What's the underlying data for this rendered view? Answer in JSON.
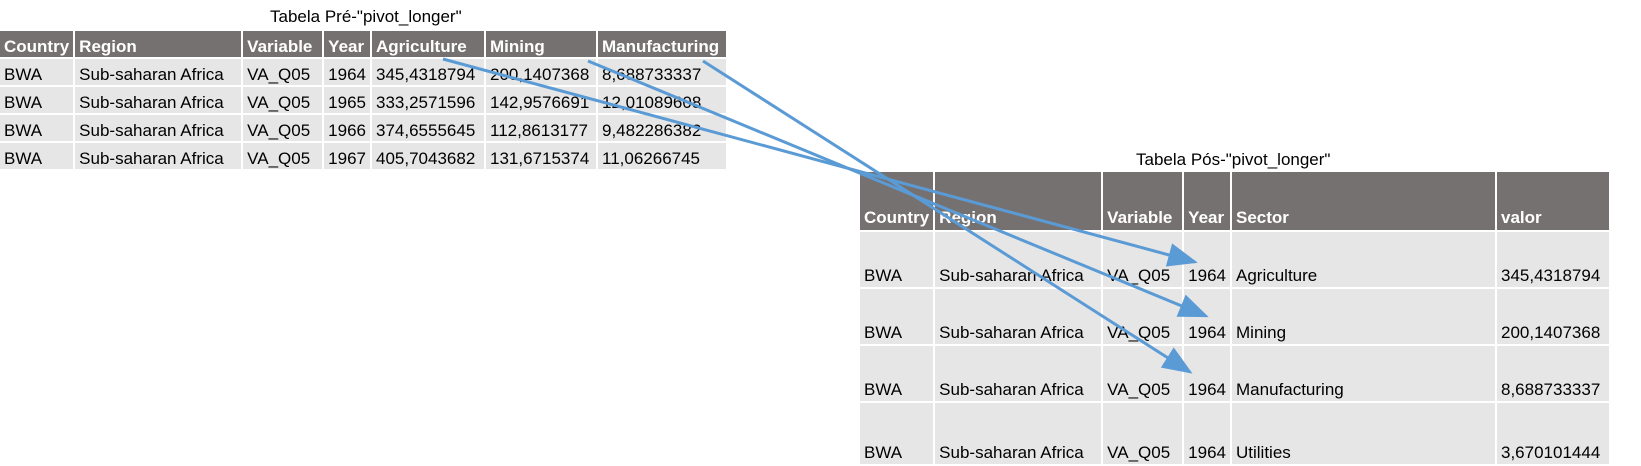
{
  "pre_title": "Tabela Pré-\"pivot_longer\"",
  "pre_table": {
    "headers": [
      "Country",
      "Region",
      "Variable",
      "Year",
      "Agriculture",
      "Mining",
      "Manufacturing"
    ],
    "rows": [
      [
        "BWA",
        "Sub-saharan Africa",
        "VA_Q05",
        "1964",
        "345,4318794",
        "200,1407368",
        "8,688733337"
      ],
      [
        "BWA",
        "Sub-saharan Africa",
        "VA_Q05",
        "1965",
        "333,2571596",
        "142,9576691",
        "12,01089608"
      ],
      [
        "BWA",
        "Sub-saharan Africa",
        "VA_Q05",
        "1966",
        "374,6555645",
        "112,8613177",
        "9,482286382"
      ],
      [
        "BWA",
        "Sub-saharan Africa",
        "VA_Q05",
        "1967",
        "405,7043682",
        "131,6715374",
        "11,06266745"
      ]
    ]
  },
  "post_title": "Tabela Pós-\"pivot_longer\"",
  "post_table": {
    "headers": [
      "Country",
      "Region",
      "Variable",
      "Year",
      "Sector",
      "valor"
    ],
    "rows": [
      [
        "BWA",
        "Sub-saharan Africa",
        "VA_Q05",
        "1964",
        "Agriculture",
        "345,4318794"
      ],
      [
        "BWA",
        "Sub-saharan Africa",
        "VA_Q05",
        "1964",
        "Mining",
        "200,1407368"
      ],
      [
        "BWA",
        "Sub-saharan Africa",
        "VA_Q05",
        "1964",
        "Manufacturing",
        "8,688733337"
      ],
      [
        "BWA",
        "Sub-saharan Africa",
        "VA_Q05",
        "1964",
        "Utilities",
        "3,670101444"
      ]
    ]
  },
  "colors": {
    "header_bg": "#767171",
    "cell_bg": "#e7e6e6",
    "arrow": "#5b9bd5"
  }
}
